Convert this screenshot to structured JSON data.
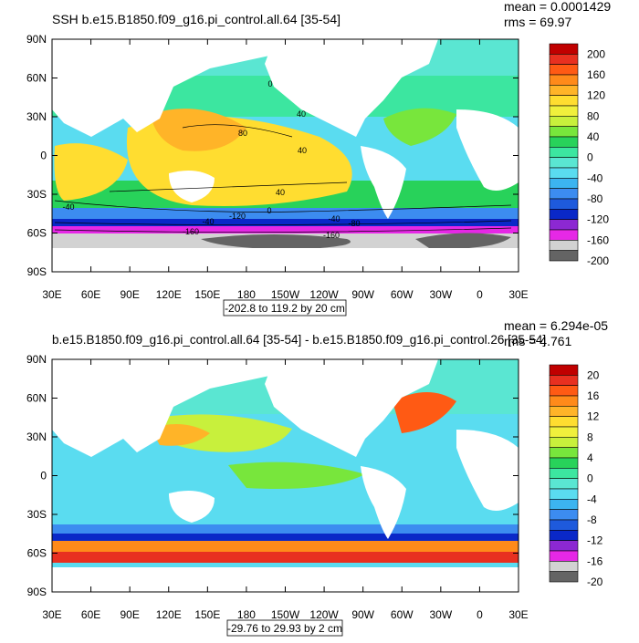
{
  "colors": {
    "ocean_base": "#7fe6d6",
    "land": "#ffffff",
    "frame": "#000000"
  },
  "chart_data": [
    {
      "type": "heatmap",
      "title": "SSH b.e15.B1850.f09_g16.pi_control.all.64 [35-54]",
      "stats": {
        "mean": "mean = 0.0001429",
        "rms": "rms = 69.97"
      },
      "range_label": "-202.8 to 119.2 by 20 cm",
      "xlabel": "",
      "ylabel": "",
      "x_ticks": [
        "30E",
        "60E",
        "90E",
        "120E",
        "150E",
        "180",
        "150W",
        "120W",
        "90W",
        "60W",
        "30W",
        "0",
        "30E"
      ],
      "y_ticks": [
        "90N",
        "60N",
        "30N",
        "0",
        "30S",
        "60S",
        "90S"
      ],
      "colorbar": {
        "labels": [
          "200",
          "160",
          "120",
          "80",
          "40",
          "0",
          "-40",
          "-80",
          "-120",
          "-160",
          "-200"
        ],
        "colors": [
          "#c00000",
          "#e83020",
          "#ff5a14",
          "#ff8a1a",
          "#ffb428",
          "#ffdd30",
          "#f0f03c",
          "#c8f03c",
          "#78e63c",
          "#28d25a",
          "#3ce6a0",
          "#5ae6d2",
          "#5adcf0",
          "#3cb4f0",
          "#3c8cf0",
          "#1e5adc",
          "#0a28c8",
          "#8c28d2",
          "#e628e6",
          "#d2d2d2",
          "#646464"
        ]
      },
      "contour_labels": [
        "0",
        "40",
        "80",
        "40",
        "40",
        "0",
        "-40",
        "-40",
        "-80",
        "-160",
        "-160",
        "-120",
        "-40"
      ]
    },
    {
      "type": "heatmap",
      "title": "b.e15.B1850.f09_g16.pi_control.all.64 [35-54] - b.e15.B1850.f09_g16.pi_control.26 [35-54]",
      "stats": {
        "mean": "mean = 6.294e-05",
        "rms": "rms = 4.761"
      },
      "range_label": "-29.76 to 29.93 by 2 cm",
      "xlabel": "",
      "ylabel": "",
      "x_ticks": [
        "30E",
        "60E",
        "90E",
        "120E",
        "150E",
        "180",
        "150W",
        "120W",
        "90W",
        "60W",
        "30W",
        "0",
        "30E"
      ],
      "y_ticks": [
        "90N",
        "60N",
        "30N",
        "0",
        "30S",
        "60S",
        "90S"
      ],
      "colorbar": {
        "labels": [
          "20",
          "16",
          "12",
          "8",
          "4",
          "0",
          "-4",
          "-8",
          "-12",
          "-16",
          "-20"
        ],
        "colors": [
          "#c00000",
          "#e83020",
          "#ff5a14",
          "#ff8a1a",
          "#ffb428",
          "#ffdd30",
          "#f0f03c",
          "#c8f03c",
          "#78e63c",
          "#28d25a",
          "#3ce6a0",
          "#5ae6d2",
          "#5adcf0",
          "#3cb4f0",
          "#3c8cf0",
          "#1e5adc",
          "#0a28c8",
          "#8c28d2",
          "#e628e6",
          "#d2d2d2",
          "#646464"
        ]
      }
    }
  ]
}
